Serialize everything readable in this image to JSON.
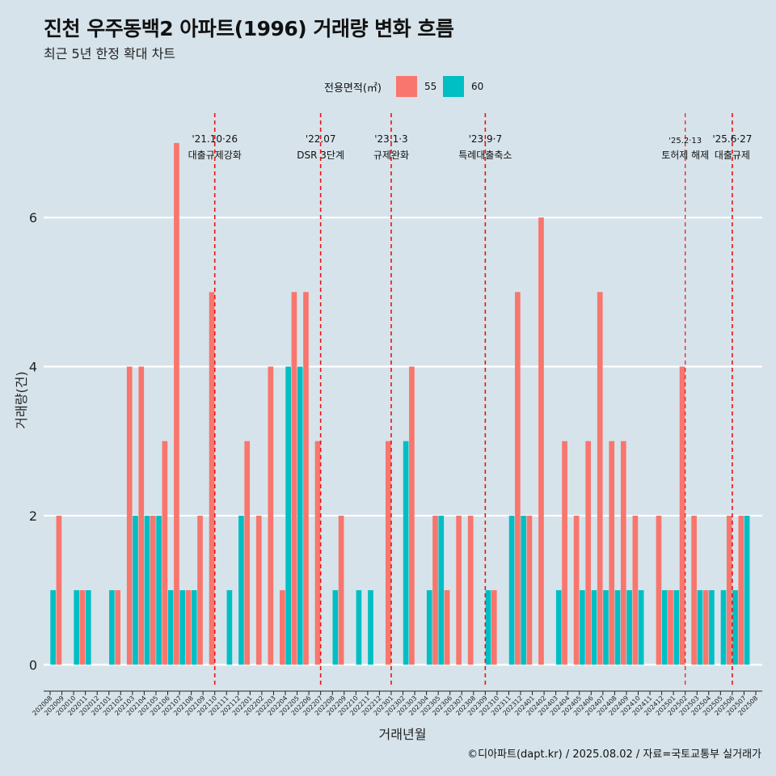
{
  "header": {
    "title": "진천 우주동백2 아파트(1996) 거래량 변화 흐름",
    "subtitle": "최근 5년 한정 확대 차트"
  },
  "legend": {
    "title": "전용면적(㎡)",
    "items": [
      {
        "label": "55",
        "color": "#f8766d"
      },
      {
        "label": "60",
        "color": "#00bfc4"
      }
    ]
  },
  "footer": {
    "credit": "©디아파트(dapt.kr) / 2025.08.02 / 자료=국토교통부 실거래가"
  },
  "chart_data": {
    "type": "bar",
    "title": "진천 우주동백2 아파트(1996) 거래량 변화 흐름",
    "xlabel": "거래년월",
    "ylabel": "거래량(건)",
    "ylim": [
      -0.3,
      7.4
    ],
    "yticks": [
      0,
      2,
      4,
      6
    ],
    "colors": {
      "55": "#f8766d",
      "60": "#00bfc4"
    },
    "categories": [
      "202008",
      "202009",
      "202010",
      "202011",
      "202012",
      "202101",
      "202102",
      "202103",
      "202104",
      "202105",
      "202106",
      "202107",
      "202108",
      "202109",
      "202110",
      "202111",
      "202112",
      "202201",
      "202202",
      "202203",
      "202204",
      "202205",
      "202206",
      "202207",
      "202208",
      "202209",
      "202210",
      "202211",
      "202212",
      "202301",
      "202302",
      "202303",
      "202304",
      "202305",
      "202306",
      "202307",
      "202308",
      "202309",
      "202310",
      "202311",
      "202312",
      "202401",
      "202402",
      "202403",
      "202404",
      "202405",
      "202406",
      "202407",
      "202408",
      "202409",
      "202410",
      "202411",
      "202412",
      "202501",
      "202502",
      "202503",
      "202504",
      "202505",
      "202506",
      "202507",
      "202508"
    ],
    "series": [
      {
        "name": "55",
        "values": [
          0,
          2,
          0,
          1,
          0,
          0,
          1,
          4,
          4,
          2,
          3,
          7,
          1,
          2,
          5,
          0,
          0,
          3,
          2,
          4,
          1,
          5,
          5,
          3,
          0,
          2,
          0,
          0,
          0,
          3,
          0,
          4,
          0,
          2,
          1,
          2,
          2,
          0,
          1,
          0,
          5,
          2,
          6,
          0,
          3,
          2,
          3,
          5,
          3,
          3,
          2,
          0,
          2,
          1,
          4,
          2,
          1,
          0,
          2,
          2,
          0
        ]
      },
      {
        "name": "60",
        "values": [
          1,
          0,
          1,
          1,
          0,
          1,
          0,
          2,
          2,
          2,
          1,
          1,
          1,
          0,
          0,
          1,
          2,
          0,
          0,
          0,
          4,
          4,
          0,
          0,
          1,
          0,
          1,
          1,
          0,
          0,
          3,
          0,
          1,
          2,
          0,
          0,
          0,
          1,
          0,
          2,
          2,
          0,
          0,
          1,
          0,
          1,
          1,
          1,
          1,
          1,
          1,
          0,
          1,
          1,
          0,
          1,
          1,
          1,
          1,
          2,
          0
        ]
      }
    ],
    "annotations": [
      {
        "month": "202110",
        "label": "'21.10·26",
        "text": "대출규제강화",
        "size": "normal"
      },
      {
        "month": "202207",
        "label": "'22.07",
        "text": "DSR 3단계",
        "size": "normal"
      },
      {
        "month": "202301",
        "label": "'23.1·3",
        "text": "규제완화",
        "size": "normal"
      },
      {
        "month": "202309",
        "label": "'23.9·7",
        "text": "특례대출축소",
        "size": "normal"
      },
      {
        "month": "202502",
        "label": "'25.2·13",
        "text": "토허제 해제",
        "size": "small"
      },
      {
        "month": "202506",
        "label": "'25.6·27",
        "text": "대출규제",
        "size": "normal"
      }
    ]
  }
}
